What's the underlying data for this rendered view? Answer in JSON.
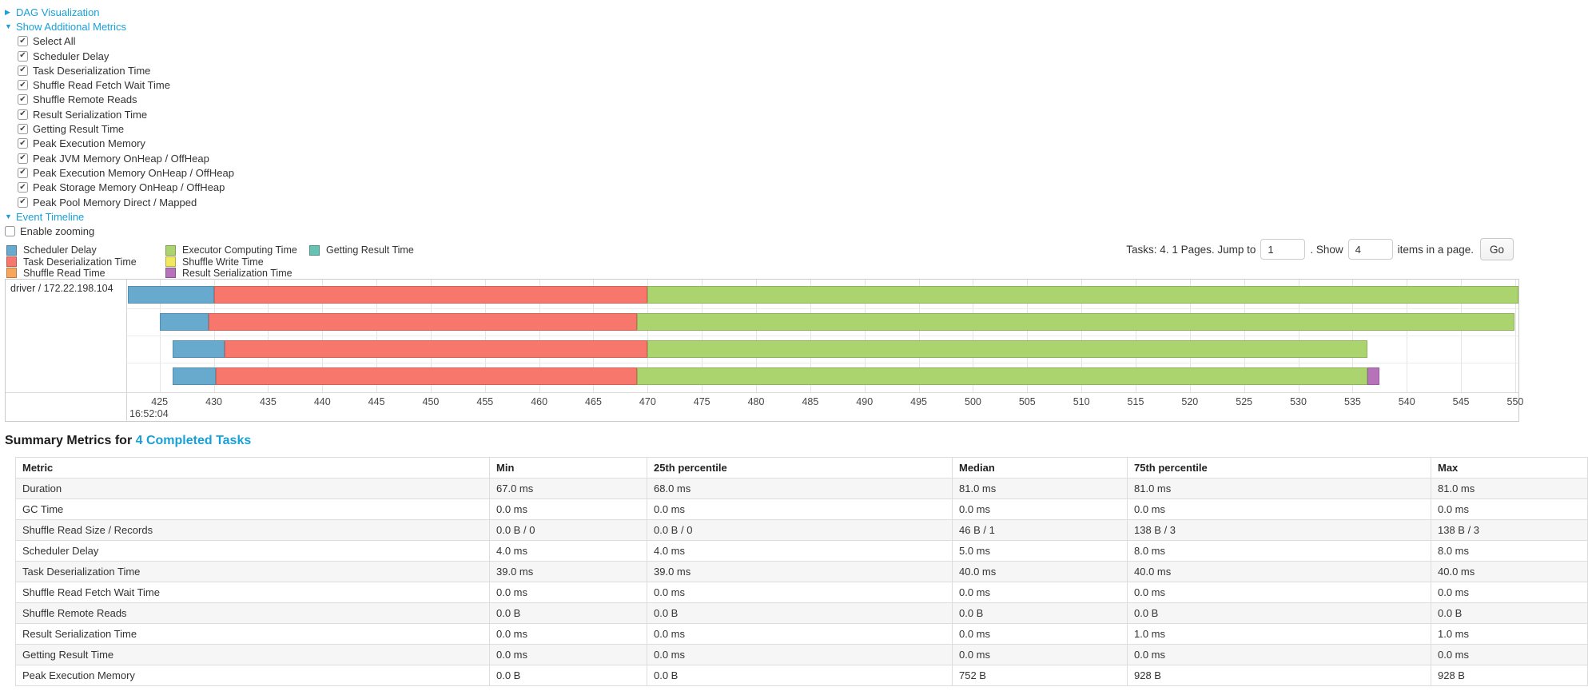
{
  "controls": {
    "dag_link": "DAG Visualization",
    "metrics_link": "Show Additional Metrics",
    "metrics_items": [
      {
        "label": "Select All",
        "checked": true
      },
      {
        "label": "Scheduler Delay",
        "checked": true
      },
      {
        "label": "Task Deserialization Time",
        "checked": true
      },
      {
        "label": "Shuffle Read Fetch Wait Time",
        "checked": true
      },
      {
        "label": "Shuffle Remote Reads",
        "checked": true
      },
      {
        "label": "Result Serialization Time",
        "checked": true
      },
      {
        "label": "Getting Result Time",
        "checked": true
      },
      {
        "label": "Peak Execution Memory",
        "checked": true
      },
      {
        "label": "Peak JVM Memory OnHeap / OffHeap",
        "checked": true
      },
      {
        "label": "Peak Execution Memory OnHeap / OffHeap",
        "checked": true
      },
      {
        "label": "Peak Storage Memory OnHeap / OffHeap",
        "checked": true
      },
      {
        "label": "Peak Pool Memory Direct / Mapped",
        "checked": true
      }
    ],
    "timeline_link": "Event Timeline",
    "enable_zooming": {
      "label": "Enable zooming",
      "checked": false
    }
  },
  "legend": {
    "columns": [
      [
        {
          "label": "Scheduler Delay",
          "type": "scheduler_delay"
        },
        {
          "label": "Task Deserialization Time",
          "type": "task_deserialization"
        },
        {
          "label": "Shuffle Read Time",
          "type": "shuffle_read"
        }
      ],
      [
        {
          "label": "Executor Computing Time",
          "type": "executor_computing"
        },
        {
          "label": "Shuffle Write Time",
          "type": "shuffle_write"
        },
        {
          "label": "Result Serialization Time",
          "type": "result_serialization"
        }
      ],
      [
        {
          "label": "Getting Result Time",
          "type": "getting_result"
        }
      ]
    ]
  },
  "pagination": {
    "summary_label": "Tasks: 4. 1 Pages. Jump to",
    "jump_value": "1",
    "show_label": ". Show",
    "show_value": "4",
    "items_label": "items in a page.",
    "go_label": "Go"
  },
  "chart_data": {
    "type": "timeline",
    "group_label": "driver / 172.22.198.104",
    "time_of_day": "16:52:04",
    "axis_unit": "ms",
    "axis_min": 422.0,
    "axis_max": 550.3,
    "ticks": [
      425,
      430,
      435,
      440,
      445,
      450,
      455,
      460,
      465,
      470,
      475,
      480,
      485,
      490,
      495,
      500,
      505,
      510,
      515,
      520,
      525,
      530,
      535,
      540,
      545,
      550
    ],
    "series_colors": {
      "scheduler_delay": "#68A9CE",
      "task_deserialization": "#F8776C",
      "shuffle_read": "#F8A65C",
      "executor_computing": "#ABD46E",
      "shuffle_write": "#F2E85E",
      "result_serialization": "#B673BA",
      "getting_result": "#68C2B4"
    },
    "tasks": [
      {
        "segments": [
          {
            "type": "scheduler_delay",
            "start": 422.1,
            "end": 430.0
          },
          {
            "type": "task_deserialization",
            "start": 430.0,
            "end": 470.0
          },
          {
            "type": "executor_computing",
            "start": 470.0,
            "end": 550.3
          }
        ]
      },
      {
        "segments": [
          {
            "type": "scheduler_delay",
            "start": 425.0,
            "end": 429.5
          },
          {
            "type": "task_deserialization",
            "start": 429.5,
            "end": 469.0
          },
          {
            "type": "executor_computing",
            "start": 469.0,
            "end": 549.9
          }
        ]
      },
      {
        "segments": [
          {
            "type": "scheduler_delay",
            "start": 426.2,
            "end": 431.0
          },
          {
            "type": "task_deserialization",
            "start": 431.0,
            "end": 470.0
          },
          {
            "type": "executor_computing",
            "start": 470.0,
            "end": 536.4
          }
        ]
      },
      {
        "segments": [
          {
            "type": "scheduler_delay",
            "start": 426.2,
            "end": 430.2
          },
          {
            "type": "task_deserialization",
            "start": 430.2,
            "end": 469.0
          },
          {
            "type": "executor_computing",
            "start": 469.0,
            "end": 536.4
          },
          {
            "type": "result_serialization",
            "start": 536.4,
            "end": 537.5
          }
        ]
      }
    ]
  },
  "summary": {
    "title_prefix": "Summary Metrics for ",
    "title_link": "4 Completed Tasks",
    "headers": [
      "Metric",
      "Min",
      "25th percentile",
      "Median",
      "75th percentile",
      "Max"
    ],
    "rows": [
      {
        "metric": "Duration",
        "values": [
          "67.0 ms",
          "68.0 ms",
          "81.0 ms",
          "81.0 ms",
          "81.0 ms"
        ]
      },
      {
        "metric": "GC Time",
        "values": [
          "0.0 ms",
          "0.0 ms",
          "0.0 ms",
          "0.0 ms",
          "0.0 ms"
        ]
      },
      {
        "metric": "Shuffle Read Size / Records",
        "values": [
          "0.0 B / 0",
          "0.0 B / 0",
          "46 B / 1",
          "138 B / 3",
          "138 B / 3"
        ]
      },
      {
        "metric": "Scheduler Delay",
        "values": [
          "4.0 ms",
          "4.0 ms",
          "5.0 ms",
          "8.0 ms",
          "8.0 ms"
        ]
      },
      {
        "metric": "Task Deserialization Time",
        "values": [
          "39.0 ms",
          "39.0 ms",
          "40.0 ms",
          "40.0 ms",
          "40.0 ms"
        ]
      },
      {
        "metric": "Shuffle Read Fetch Wait Time",
        "values": [
          "0.0 ms",
          "0.0 ms",
          "0.0 ms",
          "0.0 ms",
          "0.0 ms"
        ]
      },
      {
        "metric": "Shuffle Remote Reads",
        "values": [
          "0.0 B",
          "0.0 B",
          "0.0 B",
          "0.0 B",
          "0.0 B"
        ]
      },
      {
        "metric": "Result Serialization Time",
        "values": [
          "0.0 ms",
          "0.0 ms",
          "0.0 ms",
          "1.0 ms",
          "1.0 ms"
        ]
      },
      {
        "metric": "Getting Result Time",
        "values": [
          "0.0 ms",
          "0.0 ms",
          "0.0 ms",
          "0.0 ms",
          "0.0 ms"
        ]
      },
      {
        "metric": "Peak Execution Memory",
        "values": [
          "0.0 B",
          "0.0 B",
          "752 B",
          "928 B",
          "928 B"
        ]
      }
    ]
  }
}
